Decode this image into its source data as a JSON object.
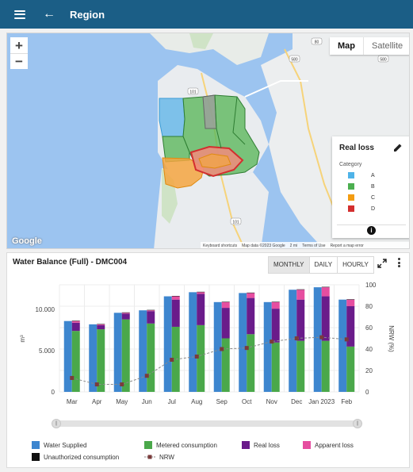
{
  "appbar": {
    "title": "Region",
    "menu_icon": "menu-icon",
    "back_icon": "back-arrow-icon"
  },
  "map": {
    "zoom_in": "+",
    "zoom_out": "−",
    "type_buttons": [
      "Map",
      "Satellite"
    ],
    "active_type": "Map",
    "logo": "Google",
    "attribution": [
      "Keyboard shortcuts",
      "Map data ©2023 Google",
      "2 mi",
      "Terms of Use",
      "Report a map error"
    ],
    "road_labels": [
      "101",
      "101",
      "580",
      "80",
      "580"
    ],
    "legend": {
      "title": "Real loss",
      "edit_icon": "pencil-icon",
      "category_label": "Category",
      "items": [
        {
          "label": "A",
          "color": "#4fb3e8"
        },
        {
          "label": "B",
          "color": "#4caf50"
        },
        {
          "label": "C",
          "color": "#f39c12"
        },
        {
          "label": "D",
          "color": "#d32f2f"
        }
      ],
      "info_icon": "info-icon"
    }
  },
  "panel": {
    "title": "Water Balance (Full) - DMC004",
    "toggles": [
      "MONTHLY",
      "DAILY",
      "HOURLY"
    ],
    "active_toggle": "MONTHLY",
    "expand_icon": "expand-icon",
    "more_icon": "more-vert-icon"
  },
  "chart_data": {
    "type": "bar",
    "categories": [
      "Mar",
      "Apr",
      "May",
      "Jun",
      "Jul",
      "Aug",
      "Sep",
      "Oct",
      "Nov",
      "Dec",
      "Jan 2023",
      "Feb"
    ],
    "ylabel": "m³",
    "y2label": "NRW (%)",
    "ylim": [
      0,
      13000
    ],
    "y2lim": [
      0,
      100
    ],
    "yticks": [
      "0",
      "5.000",
      "10.000"
    ],
    "y2ticks": [
      "0",
      "20",
      "40",
      "60",
      "80",
      "100"
    ],
    "series": [
      {
        "name": "Water Supplied",
        "color": "#3d86cf",
        "values": [
          8600,
          8200,
          9600,
          9900,
          11600,
          12100,
          10900,
          12000,
          10900,
          12400,
          12700,
          11200
        ]
      },
      {
        "name": "Metered consumption",
        "color": "#4aa84a",
        "values": [
          7400,
          7600,
          8800,
          8300,
          7900,
          8100,
          6500,
          7000,
          6000,
          6200,
          6200,
          5500
        ]
      },
      {
        "name": "Real loss",
        "color": "#6a1b8a",
        "values": [
          1000,
          500,
          700,
          1500,
          3300,
          3800,
          3700,
          4400,
          4100,
          5000,
          5400,
          4900
        ]
      },
      {
        "name": "Apparent loss",
        "color": "#e64ea0",
        "values": [
          200,
          100,
          100,
          100,
          400,
          200,
          700,
          600,
          800,
          1200,
          1100,
          800
        ]
      },
      {
        "name": "Unauthorized consumption",
        "color": "#111111",
        "values": [
          50,
          50,
          50,
          50,
          50,
          50,
          50,
          50,
          50,
          50,
          50,
          50
        ]
      },
      {
        "name": "NRW",
        "color": "#7a3b3b",
        "values": [
          13,
          7,
          7,
          15,
          30,
          33,
          40,
          41,
          47,
          50,
          51,
          49
        ]
      }
    ],
    "grid": true,
    "legend_position": "bottom"
  }
}
